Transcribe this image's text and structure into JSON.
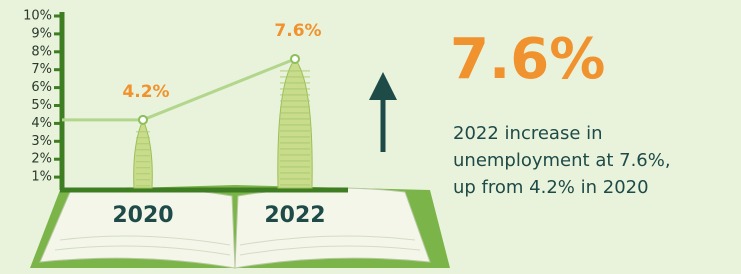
{
  "chart_data": {
    "type": "bar",
    "categories": [
      "2020",
      "2022"
    ],
    "values": [
      4.2,
      7.6
    ],
    "value_labels": [
      "4.2%",
      "7.6%"
    ],
    "color": "#c8dc8c",
    "line_color": "#b2d68c",
    "ylim": [
      0,
      10
    ],
    "yticks": [
      {
        "value": 1,
        "label": "1%"
      },
      {
        "value": 2,
        "label": "2%"
      },
      {
        "value": 3,
        "label": "3%"
      },
      {
        "value": 4,
        "label": "4%"
      },
      {
        "value": 5,
        "label": "5%"
      },
      {
        "value": 6,
        "label": "6%"
      },
      {
        "value": 7,
        "label": "7%"
      },
      {
        "value": 8,
        "label": "8%"
      },
      {
        "value": 9,
        "label": "9%"
      },
      {
        "value": 10,
        "label": "10%"
      }
    ],
    "headline": "7.6%",
    "description": [
      "2022 increase in",
      "unemployment at 7.6%,",
      "up from 4.2% in 2020"
    ]
  }
}
